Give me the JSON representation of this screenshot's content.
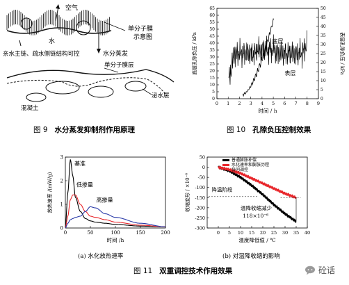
{
  "fig9": {
    "air": "空气",
    "water": "水",
    "hydrophilic_label": "亲水主链、疏水侧链结构可控",
    "monolayer_diagram_line1": "单分子膜",
    "monolayer_diagram_line2": "示意图",
    "evaporation": "水分蒸发",
    "monolayer_layer": "单分子膜层",
    "bleed_layer": "泌水层",
    "concrete": "混凝土",
    "caption_num": "图 9",
    "caption_text": "水分蒸发抑制剂作用原理"
  },
  "fig10": {
    "ylabel_left": "底层孔隙负压 / kPa",
    "ylabel_right": "表层孔隙负压 / kPa",
    "xlabel": "时间 / h",
    "label_bottom": "底层",
    "label_surface": "表层",
    "caption_num": "图 10",
    "caption_text": "孔隙负压控制效果"
  },
  "fig11a": {
    "ylabel": "放热速率 /(mW/g)",
    "xlabel": "时间 /h",
    "label_base": "基准",
    "label_low": "低掺量",
    "label_high": "高掺量",
    "subcaption": "(a) 水化放热速率"
  },
  "fig11b": {
    "ylabel": "收缩变形 / ×10⁻⁶",
    "xlabel": "温度降低值 / ℃",
    "legend_1": "普通膨胀补偿",
    "legend_2": "水化速率和膨胀历程",
    "legend_3": "协同调控",
    "annot_stage": "降温阶段",
    "annot_reduce": "温降收缩减少",
    "annot_value": "118×10⁻⁶",
    "subcaption": "(b) 对温降收缩的影响"
  },
  "fig11": {
    "caption_num": "图 11",
    "caption_text": "双重调控技术作用效果"
  },
  "watermark": "砼话",
  "colors": {
    "red": "#e8262b",
    "blue": "#2a3aa8",
    "black": "#000000"
  },
  "chart_data": [
    {
      "type": "line",
      "x": [
        0,
        1,
        2,
        3,
        4,
        5,
        6,
        7,
        8
      ],
      "series": [
        {
          "name": "底层",
          "values": [
            null,
            null,
            3,
            5,
            8,
            15,
            28,
            40,
            55
          ]
        },
        {
          "name": "表层",
          "values": [
            null,
            25,
            25,
            25,
            27,
            25,
            22,
            24,
            30
          ]
        }
      ],
      "xlim": [
        0,
        9
      ],
      "ylim_left": [
        0,
        65
      ],
      "ylim_right": [
        0,
        50
      ],
      "xticks": [
        0,
        1,
        2,
        3,
        4,
        5,
        6,
        7,
        8,
        9
      ],
      "yticks_left": [
        0,
        5,
        10,
        15,
        20,
        25,
        30,
        35,
        40,
        45,
        50,
        55,
        60,
        65
      ],
      "yticks_right": [
        0,
        5,
        10,
        15,
        20,
        25,
        30,
        35,
        40,
        45,
        50
      ]
    },
    {
      "type": "line",
      "x": [
        0,
        5,
        10,
        15,
        20,
        30,
        40,
        50,
        60,
        80,
        100,
        150,
        200
      ],
      "series": [
        {
          "name": "基准",
          "values": [
            0,
            1.5,
            2.9,
            2.2,
            1.3,
            0.7,
            0.4,
            0.3,
            0.25,
            0.2,
            0.15,
            0.08,
            0.05
          ]
        },
        {
          "name": "低掺量",
          "values": [
            0,
            0.5,
            1.2,
            1.4,
            1.4,
            1.0,
            0.7,
            0.5,
            0.45,
            0.35,
            0.25,
            0.12,
            0.05
          ]
        },
        {
          "name": "高掺量",
          "values": [
            0,
            0.2,
            0.35,
            0.4,
            0.45,
            0.5,
            0.7,
            0.9,
            0.85,
            0.6,
            0.45,
            0.2,
            0.05
          ]
        }
      ],
      "xlim": [
        0,
        200
      ],
      "ylim": [
        0,
        3
      ],
      "xticks": [
        0,
        50,
        100,
        150,
        200
      ],
      "yticks": [
        0,
        1,
        2,
        3
      ]
    },
    {
      "type": "line",
      "x": [
        0,
        5,
        10,
        15,
        20,
        25,
        30,
        35
      ],
      "series": [
        {
          "name": "普通膨胀补偿",
          "values": [
            0,
            -18,
            -50,
            -90,
            -135,
            -185,
            -230,
            -268
          ]
        },
        {
          "name": "协同调控",
          "values": [
            0,
            -12,
            -30,
            -55,
            -80,
            -105,
            -130,
            -150
          ]
        }
      ],
      "xlim": [
        -5,
        40
      ],
      "ylim": [
        -300,
        50
      ],
      "xticks": [
        0,
        5,
        10,
        15,
        20,
        25,
        30,
        35,
        40
      ],
      "yticks": [
        -300,
        -250,
        -200,
        -150,
        -100,
        -50,
        0,
        50
      ]
    }
  ]
}
